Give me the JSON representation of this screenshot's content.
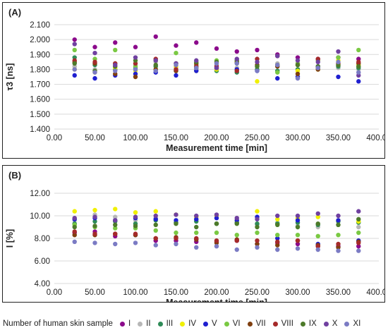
{
  "colors": [
    "#8b0a8b",
    "#b7b7b7",
    "#2e8b57",
    "#f0f000",
    "#1f1fd0",
    "#7ac943",
    "#7f3f0f",
    "#a52a2a",
    "#4d7a2a",
    "#7040a0",
    "#7b7bc4"
  ],
  "legend": {
    "title": "Number of human skin sample",
    "labels": [
      "I",
      "II",
      "III",
      "IV",
      "V",
      "VI",
      "VII",
      "VIII",
      "IX",
      "X",
      "XI"
    ]
  },
  "chart_data": [
    {
      "type": "scatter",
      "panel_label": "(A)",
      "xlabel": "Measurement time [min]",
      "ylabel": "τ3 [ns]",
      "xlim": [
        0,
        400
      ],
      "ylim": [
        1.4,
        2.1
      ],
      "xticks": [
        "0.00",
        "50.00",
        "100.00",
        "150.00",
        "200.00",
        "250.00",
        "300.00",
        "350.00",
        "400.00"
      ],
      "yticks": [
        "1.400",
        "1.500",
        "1.600",
        "1.700",
        "1.800",
        "1.900",
        "2.000",
        "2.100"
      ],
      "x": [
        25,
        50,
        75,
        100,
        125,
        150,
        175,
        200,
        225,
        250,
        275,
        300,
        325,
        350,
        375
      ],
      "series": [
        {
          "name": "I",
          "values": [
            2.0,
            1.95,
            1.98,
            1.95,
            2.02,
            1.96,
            1.98,
            1.94,
            1.92,
            1.93,
            1.9,
            1.88,
            1.87,
            1.88,
            1.87
          ]
        },
        {
          "name": "II",
          "values": [
            1.82,
            1.8,
            1.84,
            1.83,
            1.85,
            1.81,
            1.8,
            1.83,
            1.81,
            1.82,
            1.84,
            1.8,
            1.82,
            1.81,
            1.8
          ]
        },
        {
          "name": "III",
          "values": [
            1.88,
            1.83,
            1.8,
            1.81,
            1.82,
            1.79,
            1.81,
            1.79,
            1.78,
            1.8,
            1.79,
            1.8,
            1.81,
            1.82,
            1.81
          ]
        },
        {
          "name": "IV",
          "values": [
            1.8,
            1.78,
            1.81,
            1.79,
            1.8,
            1.82,
            1.79,
            1.8,
            1.85,
            1.72,
            1.83,
            1.79,
            1.8,
            1.86,
            1.83
          ]
        },
        {
          "name": "V",
          "values": [
            1.76,
            1.74,
            1.76,
            1.77,
            1.78,
            1.76,
            1.79,
            1.81,
            1.8,
            1.79,
            1.74,
            1.75,
            1.82,
            1.75,
            1.72
          ]
        },
        {
          "name": "VI",
          "values": [
            1.93,
            1.87,
            1.93,
            1.82,
            1.86,
            1.91,
            1.83,
            1.86,
            1.84,
            1.85,
            1.78,
            1.84,
            1.86,
            1.88,
            1.93
          ]
        },
        {
          "name": "VII",
          "values": [
            1.85,
            1.84,
            1.77,
            1.75,
            1.8,
            1.79,
            1.84,
            1.81,
            1.85,
            1.83,
            1.82,
            1.77,
            1.8,
            1.83,
            1.84
          ]
        },
        {
          "name": "VIII",
          "values": [
            1.86,
            1.85,
            1.84,
            1.84,
            1.87,
            1.8,
            1.82,
            1.82,
            1.79,
            1.87,
            1.89,
            1.83,
            1.87,
            1.84,
            1.85
          ]
        },
        {
          "name": "IX",
          "values": [
            1.84,
            1.79,
            1.82,
            1.86,
            1.83,
            1.84,
            1.85,
            1.85,
            1.86,
            1.82,
            1.83,
            1.83,
            1.82,
            1.83,
            1.82
          ]
        },
        {
          "name": "X",
          "values": [
            1.97,
            1.91,
            1.83,
            1.88,
            1.86,
            1.84,
            1.86,
            1.81,
            1.87,
            1.85,
            1.89,
            1.86,
            1.85,
            1.92,
            1.76
          ]
        },
        {
          "name": "XI",
          "values": [
            1.8,
            1.78,
            1.79,
            1.8,
            1.79,
            1.83,
            1.81,
            1.84,
            1.84,
            1.79,
            1.83,
            1.74,
            1.81,
            1.85,
            1.78
          ]
        }
      ]
    },
    {
      "type": "scatter",
      "panel_label": "(B)",
      "xlabel": "Measurement time [min]",
      "ylabel": "I [%]",
      "xlim": [
        0,
        400
      ],
      "ylim": [
        4,
        12
      ],
      "xticks": [
        "0.00",
        "50.00",
        "100.00",
        "150.00",
        "200.00",
        "250.00",
        "300.00",
        "350.00",
        "400.00"
      ],
      "yticks": [
        "4.00",
        "6.00",
        "8.00",
        "10.00",
        "12.00"
      ],
      "x": [
        25,
        50,
        75,
        100,
        125,
        150,
        175,
        200,
        225,
        250,
        275,
        300,
        325,
        350,
        375
      ],
      "series": [
        {
          "name": "I",
          "values": [
            8.5,
            8.6,
            8.2,
            8.3,
            7.8,
            7.8,
            7.7,
            7.7,
            7.8,
            7.5,
            7.6,
            7.5,
            7.3,
            7.3,
            7.3
          ]
        },
        {
          "name": "II",
          "values": [
            9.6,
            10.1,
            9.9,
            9.6,
            9.8,
            9.4,
            9.6,
            9.3,
            9.4,
            9.2,
            9.4,
            9.1,
            9.0,
            9.2,
            9.0
          ]
        },
        {
          "name": "III",
          "values": [
            9.3,
            9.5,
            9.5,
            9.3,
            9.6,
            9.4,
            9.5,
            9.3,
            9.4,
            9.3,
            9.3,
            9.4,
            9.2,
            9.5,
            9.4
          ]
        },
        {
          "name": "IV",
          "values": [
            10.4,
            10.5,
            10.6,
            10.3,
            10.4,
            10.1,
            9.9,
            10.0,
            9.6,
            10.4,
            9.7,
            9.8,
            9.9,
            9.6,
            9.5
          ]
        },
        {
          "name": "V",
          "values": [
            9.7,
            9.8,
            9.6,
            9.8,
            9.7,
            9.6,
            9.7,
            9.8,
            9.6,
            9.9,
            8.0,
            9.6,
            7.5,
            9.6,
            7.8
          ]
        },
        {
          "name": "VI",
          "values": [
            9.2,
            9.0,
            8.9,
            8.9,
            8.7,
            8.5,
            8.5,
            8.5,
            8.3,
            8.5,
            8.3,
            8.3,
            8.2,
            8.3,
            8.5
          ]
        },
        {
          "name": "VII",
          "values": [
            8.3,
            8.3,
            8.4,
            8.3,
            8.0,
            8.1,
            7.9,
            7.6,
            7.9,
            7.5,
            7.4,
            7.8,
            7.4,
            7.2,
            7.7
          ]
        },
        {
          "name": "VIII",
          "values": [
            8.6,
            8.4,
            8.4,
            8.4,
            8.0,
            8.0,
            8.0,
            7.8,
            7.8,
            7.8,
            7.7,
            7.8,
            7.3,
            7.5,
            7.6
          ]
        },
        {
          "name": "IX",
          "values": [
            9.0,
            9.1,
            9.2,
            9.1,
            9.2,
            9.3,
            9.0,
            9.3,
            9.3,
            9.0,
            9.2,
            9.0,
            9.3,
            9.2,
            9.7
          ]
        },
        {
          "name": "X",
          "values": [
            9.8,
            9.9,
            9.6,
            9.9,
            10.0,
            10.1,
            10.0,
            10.1,
            9.8,
            9.7,
            10.0,
            10.0,
            10.2,
            10.0,
            10.4
          ]
        },
        {
          "name": "XI",
          "values": [
            7.7,
            7.6,
            7.5,
            7.6,
            7.4,
            7.5,
            7.2,
            7.3,
            7.0,
            7.2,
            7.0,
            7.1,
            7.0,
            6.9,
            6.9
          ]
        }
      ]
    }
  ]
}
